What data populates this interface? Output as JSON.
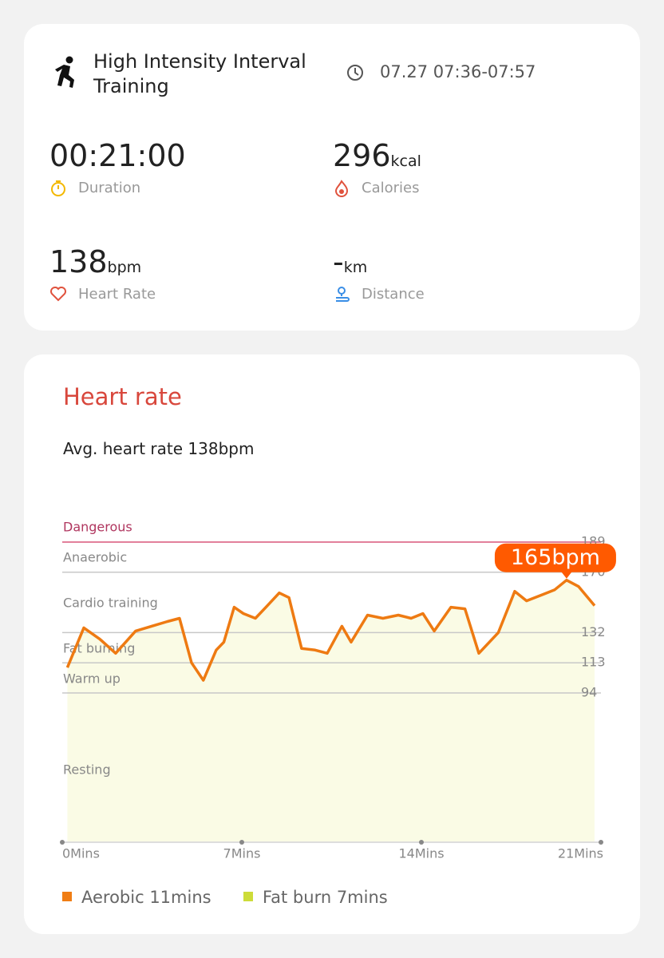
{
  "summary": {
    "activity": "High Intensity Interval Training",
    "time": "07.27 07:36-07:57",
    "stats": [
      {
        "value": "00:21:00",
        "label": "Duration"
      },
      {
        "value": 296,
        "unit": "kcal",
        "label": "Calories"
      },
      {
        "value": 138,
        "unit": "bpm",
        "label": "Heart Rate"
      },
      {
        "value": "-",
        "unit": "km",
        "label": "Distance"
      }
    ]
  },
  "chart_data": {
    "type": "line",
    "title": "Heart rate",
    "subtitle": "Avg. heart rate 138bpm",
    "zones": [
      "Dangerous",
      "Anaerobic",
      "Cardio training",
      "Fat burning",
      "Warm up",
      "Resting"
    ],
    "x": [
      0.2,
      0.84,
      1.46,
      2.08,
      2.86,
      3.48,
      4.1,
      4.57,
      5.04,
      5.5,
      6.0,
      6.3,
      6.7,
      7.06,
      7.53,
      8.0,
      8.46,
      8.84,
      9.33,
      9.86,
      10.33,
      10.9,
      11.26,
      11.9,
      12.5,
      13.1,
      13.6,
      14.06,
      14.5,
      15.15,
      15.7,
      16.24,
      17.0,
      17.64,
      18.1,
      18.73,
      19.2,
      19.66,
      20.13,
      20.75
    ],
    "values": [
      110,
      135,
      128,
      119,
      133,
      136,
      139,
      141,
      113,
      102,
      121,
      126,
      148,
      144,
      141,
      149,
      157,
      154,
      122,
      121,
      119,
      136,
      126,
      143,
      141,
      143,
      141,
      144,
      133,
      148,
      147,
      119,
      132,
      158,
      152,
      156,
      159,
      165,
      161,
      149
    ],
    "color": "#ee7a12",
    "fill": "#fafbe5",
    "xlim": [
      0,
      21
    ],
    "ylim": [
      0,
      189
    ],
    "xticks": [
      {
        "value": 0,
        "label": "0Mins"
      },
      {
        "value": 7,
        "label": "7Mins"
      },
      {
        "value": 14,
        "label": "14Mins"
      },
      {
        "value": 21,
        "label": "21Mins"
      }
    ],
    "yticks": [
      94,
      113,
      132,
      170,
      189
    ],
    "annotation": "165bpm",
    "legend": [
      {
        "name": "Aerobic 11mins",
        "color": "#f07d14"
      },
      {
        "name": "Fat burn 7mins",
        "color": "#cddc39"
      }
    ]
  }
}
